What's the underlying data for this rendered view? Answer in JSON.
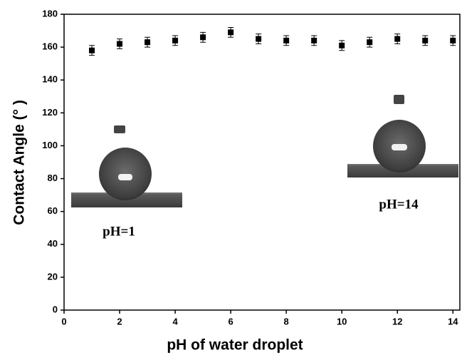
{
  "chart_data": {
    "type": "scatter",
    "x_label": "pH of water droplet",
    "y_label": "Contact Angle (°  )",
    "x": [
      1,
      2,
      3,
      4,
      5,
      6,
      7,
      8,
      9,
      10,
      11,
      12,
      13,
      14
    ],
    "series": [
      {
        "color": "#000000",
        "values": [
          158,
          162,
          163,
          164,
          166,
          169,
          165,
          164,
          164,
          161,
          163,
          165,
          164,
          164
        ],
        "errors": [
          3,
          3,
          3,
          3,
          3,
          3,
          3,
          3,
          3,
          3,
          3,
          3,
          3,
          3
        ]
      }
    ],
    "xlim": [
      0,
      14.25
    ],
    "xticks": [
      0,
      2,
      4,
      6,
      8,
      10,
      12,
      14
    ],
    "ylim": [
      0,
      180
    ],
    "yticks": [
      0,
      20,
      40,
      60,
      80,
      100,
      120,
      140,
      160,
      180
    ],
    "annotations": [
      "pH=1",
      "pH=14"
    ]
  }
}
